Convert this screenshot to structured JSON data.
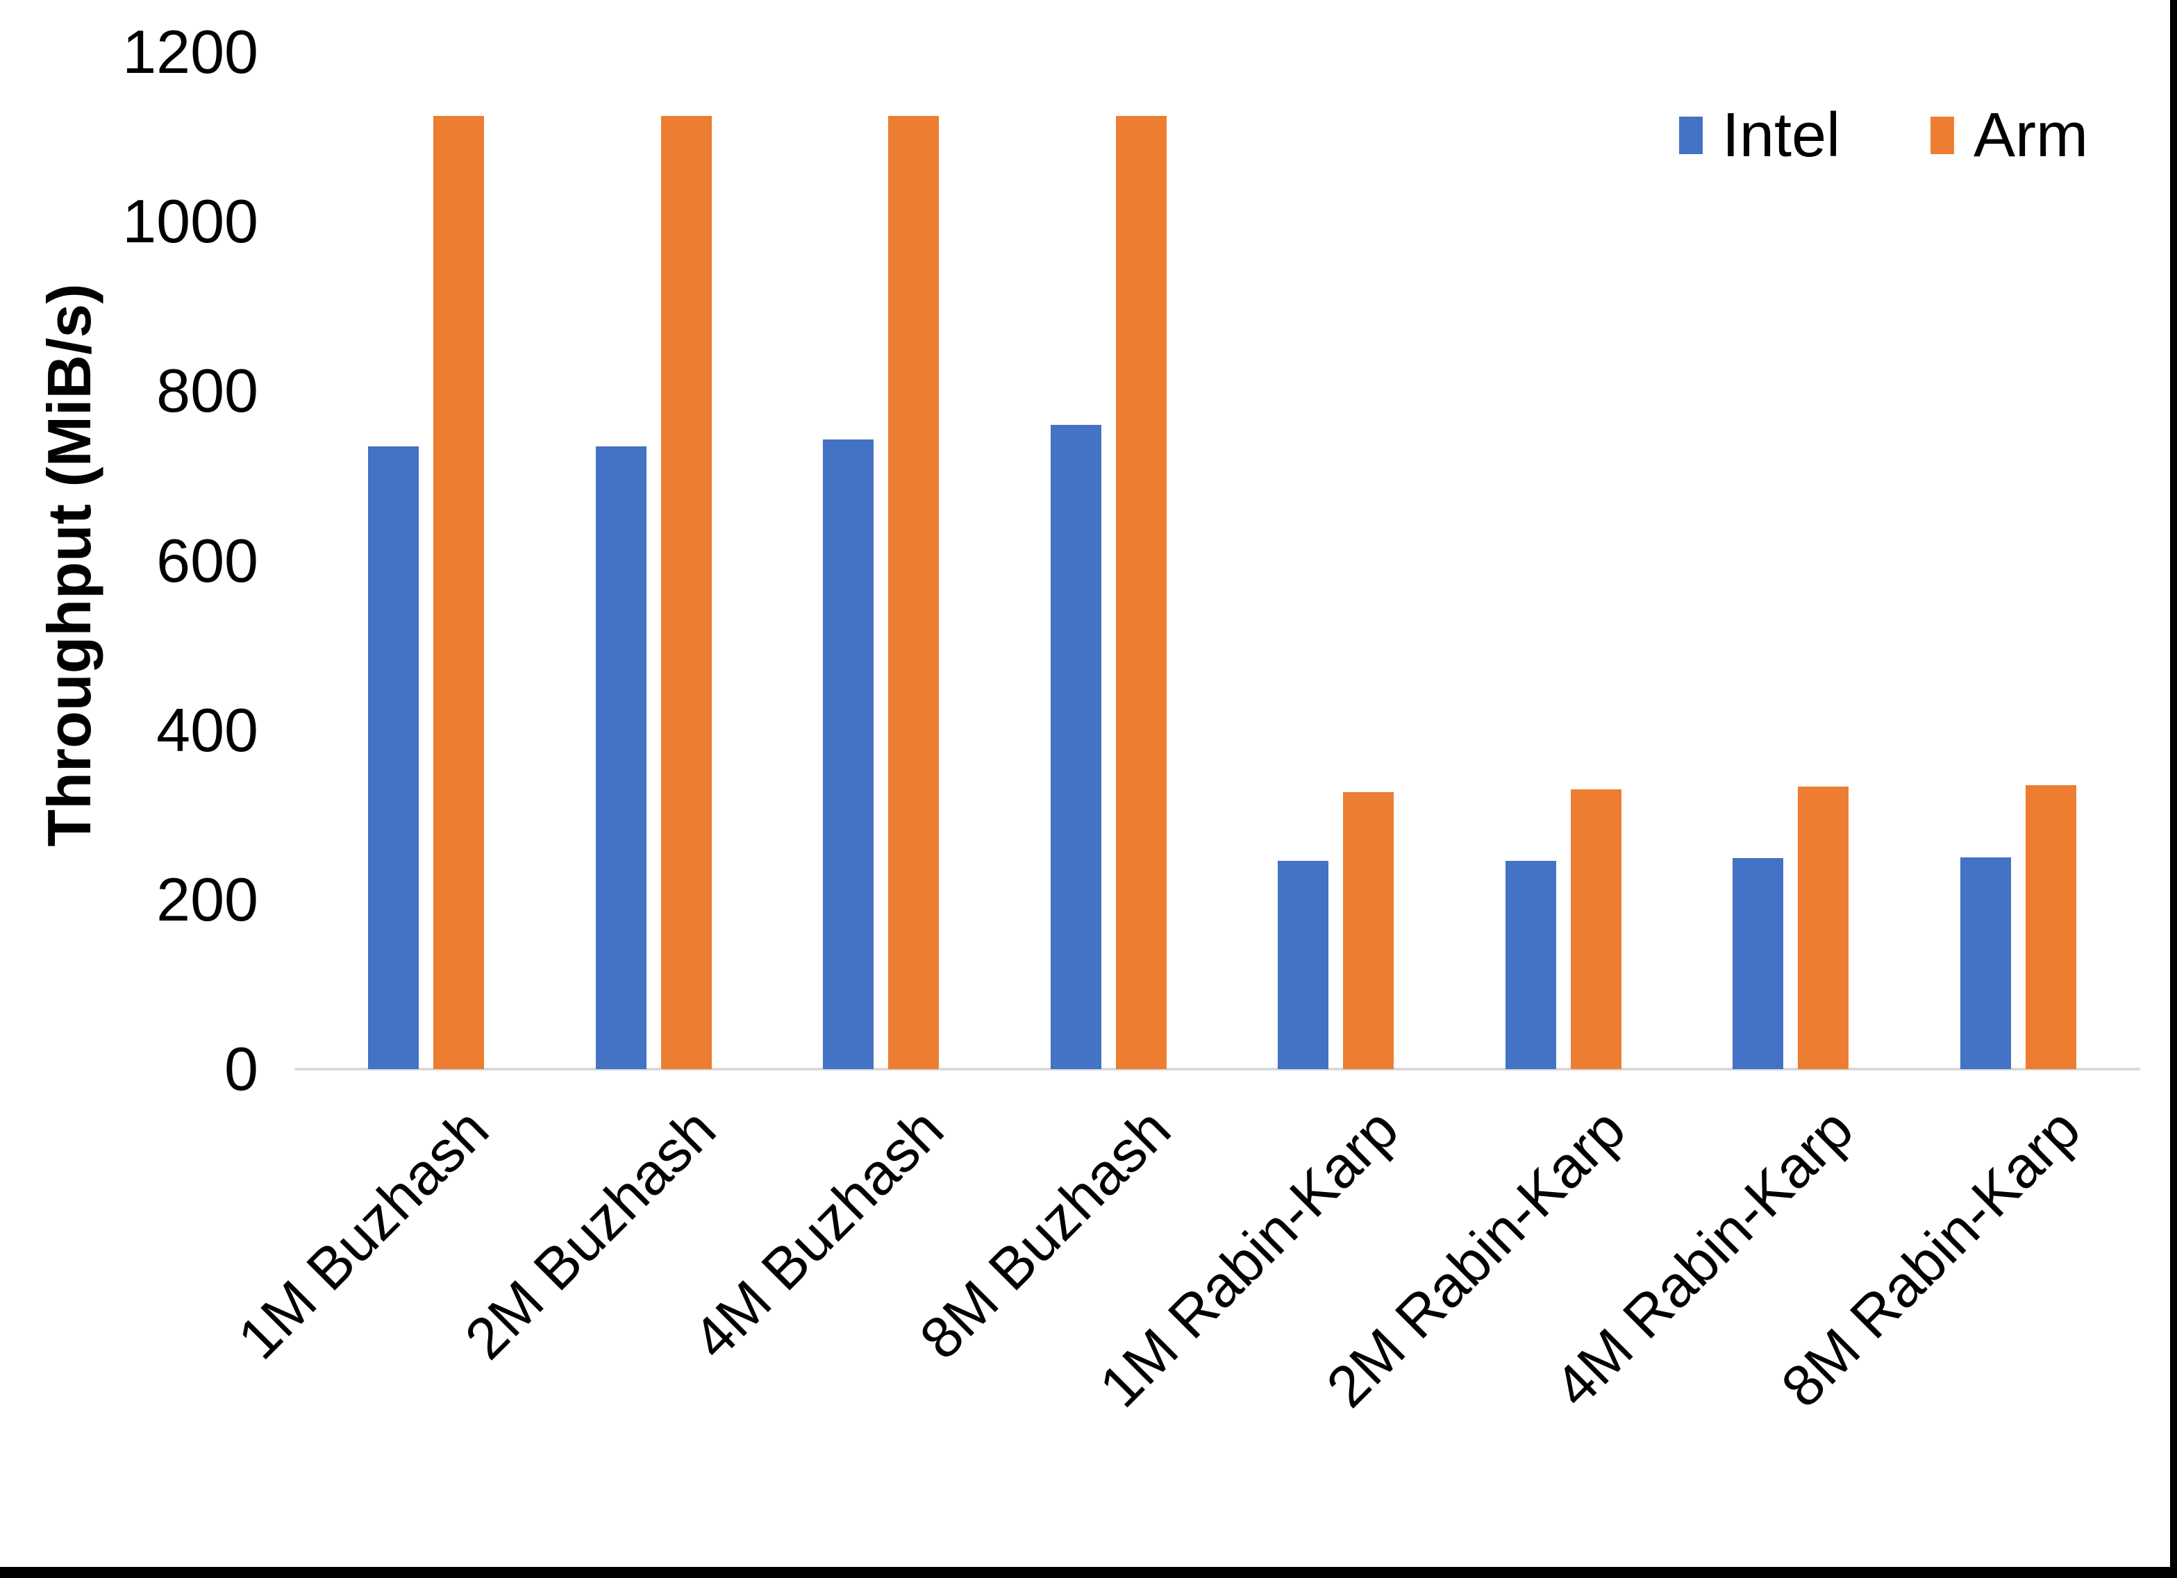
{
  "chart_data": {
    "type": "bar",
    "categories": [
      "1M Buzhash",
      "2M Buzhash",
      "4M Buzhash",
      "8M Buzhash",
      "1M Rabin-Karp",
      "2M Rabin-Karp",
      "4M Rabin-Karp",
      "8M Rabin-Karp"
    ],
    "series": [
      {
        "name": "Intel",
        "color": "#4472C4",
        "values": [
          735,
          735,
          743,
          760,
          246,
          246,
          249,
          250
        ]
      },
      {
        "name": "Arm",
        "color": "#ED7D31",
        "values": [
          1125,
          1125,
          1125,
          1125,
          327,
          330,
          333,
          335
        ]
      }
    ],
    "title": "",
    "xlabel": "",
    "ylabel": "Throughput (MiB/s)",
    "ylim": [
      0,
      1200
    ],
    "yticks": [
      0,
      200,
      400,
      600,
      800,
      1000,
      1200
    ],
    "legend_position": "top-right",
    "grid": false,
    "axis_line_color": "#D9D9D9",
    "text_color": "#000000"
  }
}
